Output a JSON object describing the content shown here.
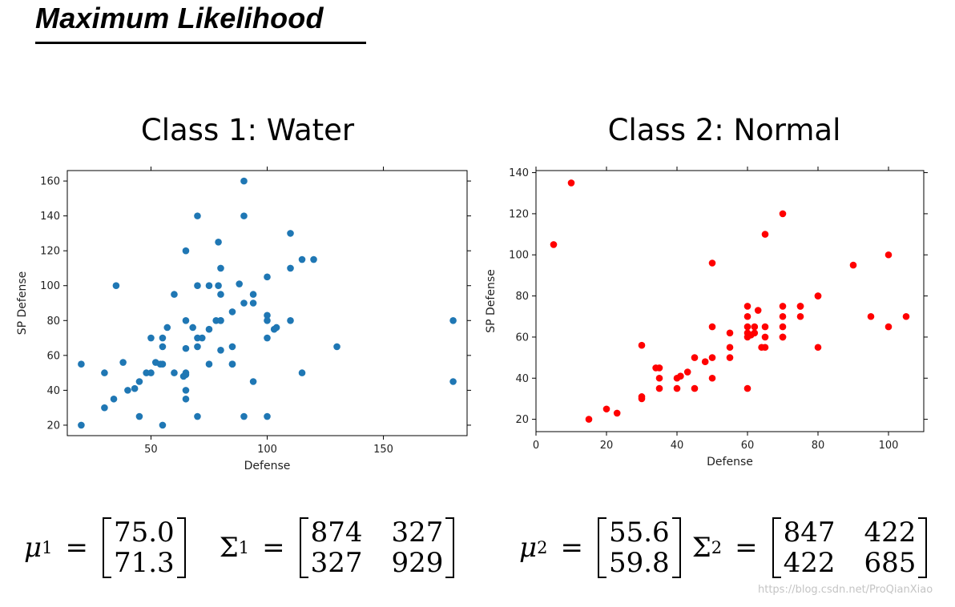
{
  "page": {
    "title": "Maximum Likelihood",
    "watermark": "https://blog.csdn.net/ProQianXiao"
  },
  "colors": {
    "class1_point": "#1f77b4",
    "class2_point": "#ff0000"
  },
  "chart_data": [
    {
      "type": "scatter",
      "title": "Class 1: Water",
      "xlabel": "Defense",
      "ylabel": "SP Defense",
      "xlim": [
        14,
        186
      ],
      "ylim": [
        14,
        166
      ],
      "xticks": [
        50,
        100,
        150
      ],
      "yticks": [
        20,
        40,
        60,
        80,
        100,
        120,
        140,
        160
      ],
      "series": [
        {
          "name": "Water",
          "x": [
            20,
            20,
            30,
            30,
            34,
            35,
            38,
            40,
            43,
            45,
            45,
            48,
            50,
            50,
            52,
            54,
            55,
            55,
            55,
            55,
            57,
            60,
            60,
            64,
            65,
            65,
            65,
            65,
            65,
            65,
            65,
            68,
            70,
            70,
            70,
            70,
            70,
            72,
            75,
            75,
            75,
            78,
            79,
            79,
            80,
            80,
            80,
            80,
            80,
            85,
            85,
            85,
            85,
            88,
            90,
            90,
            90,
            90,
            94,
            94,
            94,
            100,
            100,
            100,
            100,
            100,
            103,
            104,
            110,
            110,
            110,
            115,
            115,
            120,
            130,
            180,
            180
          ],
          "y": [
            55,
            20,
            50,
            30,
            35,
            100,
            56,
            40,
            41,
            45,
            25,
            50,
            50,
            70,
            56,
            55,
            70,
            65,
            20,
            55,
            76,
            95,
            50,
            48,
            120,
            80,
            64,
            50,
            40,
            35,
            49,
            76,
            140,
            100,
            70,
            65,
            25,
            70,
            55,
            100,
            75,
            80,
            125,
            100,
            80,
            110,
            95,
            63,
            80,
            85,
            55,
            65,
            55,
            101,
            160,
            90,
            140,
            25,
            95,
            90,
            45,
            105,
            83,
            25,
            70,
            80,
            75,
            76,
            130,
            80,
            110,
            115,
            50,
            115,
            65,
            80,
            45
          ]
        }
      ],
      "formula": {
        "mu": "μ",
        "Sigma": "Σ",
        "superscript": "1",
        "mean": [
          "75.0",
          "71.3"
        ],
        "cov": [
          [
            "874",
            "327"
          ],
          [
            "327",
            "929"
          ]
        ]
      }
    },
    {
      "type": "scatter",
      "title": "Class 2: Normal",
      "xlabel": "Defense",
      "ylabel": "SP Defense",
      "xlim": [
        0,
        110
      ],
      "ylim": [
        14,
        141
      ],
      "xticks": [
        0,
        20,
        40,
        60,
        80,
        100
      ],
      "yticks": [
        20,
        40,
        60,
        80,
        100,
        120,
        140
      ],
      "series": [
        {
          "name": "Normal",
          "x": [
            5,
            10,
            15,
            20,
            23,
            30,
            30,
            30,
            34,
            35,
            35,
            35,
            40,
            40,
            41,
            43,
            45,
            45,
            48,
            50,
            50,
            50,
            50,
            55,
            55,
            55,
            60,
            60,
            60,
            60,
            60,
            60,
            61,
            62,
            62,
            63,
            64,
            65,
            65,
            65,
            65,
            70,
            70,
            70,
            70,
            70,
            70,
            75,
            75,
            75,
            80,
            80,
            80,
            90,
            95,
            100,
            100,
            105
          ],
          "y": [
            105,
            135,
            20,
            25,
            23,
            31,
            56,
            30,
            45,
            45,
            40,
            35,
            40,
            35,
            41,
            43,
            50,
            35,
            48,
            96,
            65,
            50,
            40,
            62,
            55,
            50,
            75,
            70,
            65,
            62,
            60,
            35,
            61,
            65,
            62,
            73,
            55,
            110,
            65,
            60,
            55,
            120,
            75,
            70,
            65,
            60,
            60,
            75,
            75,
            70,
            80,
            80,
            55,
            95,
            70,
            100,
            65,
            70
          ]
        }
      ],
      "formula": {
        "mu": "μ",
        "Sigma": "Σ",
        "superscript": "2",
        "mean": [
          "55.6",
          "59.8"
        ],
        "cov": [
          [
            "847",
            "422"
          ],
          [
            "422",
            "685"
          ]
        ]
      }
    }
  ]
}
